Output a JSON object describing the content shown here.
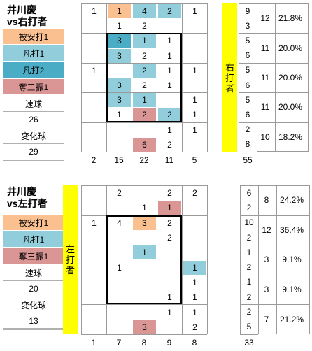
{
  "panels": [
    {
      "title_line1": "井川慶",
      "title_line2": "vs右打者",
      "side_label": [
        "右",
        "打",
        "者"
      ],
      "legend": [
        {
          "label": "被安打1",
          "color": "#fac090"
        },
        {
          "label": "凡打1",
          "color": "#92cddc"
        },
        {
          "label": "凡打2",
          "color": "#4bacc6"
        },
        {
          "label": "奪三振1",
          "color": "#d99694"
        }
      ],
      "pitches": [
        {
          "label": "速球",
          "count": "26"
        },
        {
          "label": "変化球",
          "count": "29"
        }
      ],
      "rows": 10,
      "cells": [
        {
          "r": 0,
          "c": 1,
          "v": "1"
        },
        {
          "r": 0,
          "c": 2,
          "v": "1",
          "bg": "#fac090"
        },
        {
          "r": 0,
          "c": 3,
          "v": "4",
          "bg": "#92cddc"
        },
        {
          "r": 0,
          "c": 4,
          "v": "2",
          "bg": "#92cddc"
        },
        {
          "r": 0,
          "c": 5,
          "v": "1"
        },
        {
          "r": 1,
          "c": 2,
          "v": "1"
        },
        {
          "r": 1,
          "c": 3,
          "v": "2"
        },
        {
          "r": 2,
          "c": 2,
          "v": "3",
          "bg": "#4bacc6"
        },
        {
          "r": 2,
          "c": 3,
          "v": "1",
          "bg": "#92cddc"
        },
        {
          "r": 2,
          "c": 4,
          "v": "1"
        },
        {
          "r": 3,
          "c": 2,
          "v": "3",
          "bg": "#92cddc"
        },
        {
          "r": 3,
          "c": 3,
          "v": "2"
        },
        {
          "r": 3,
          "c": 4,
          "v": "1"
        },
        {
          "r": 4,
          "c": 1,
          "v": "1"
        },
        {
          "r": 4,
          "c": 3,
          "v": "2",
          "bg": "#92cddc"
        },
        {
          "r": 4,
          "c": 4,
          "v": "1"
        },
        {
          "r": 4,
          "c": 5,
          "v": "1"
        },
        {
          "r": 5,
          "c": 2,
          "v": "3",
          "bg": "#92cddc"
        },
        {
          "r": 5,
          "c": 3,
          "v": "2"
        },
        {
          "r": 5,
          "c": 4,
          "v": "1"
        },
        {
          "r": 6,
          "c": 2,
          "v": "3",
          "bg": "#92cddc"
        },
        {
          "r": 6,
          "c": 3,
          "v": "1",
          "bg": "#92cddc"
        },
        {
          "r": 6,
          "c": 5,
          "v": "1"
        },
        {
          "r": 7,
          "c": 2,
          "v": "1"
        },
        {
          "r": 7,
          "c": 3,
          "v": "2",
          "bg": "#d99694"
        },
        {
          "r": 7,
          "c": 4,
          "v": "2",
          "bg": "#92cddc"
        },
        {
          "r": 7,
          "c": 5,
          "v": "1"
        },
        {
          "r": 8,
          "c": 4,
          "v": "1"
        },
        {
          "r": 8,
          "c": 5,
          "v": "1"
        },
        {
          "r": 9,
          "c": 3,
          "v": "6",
          "bg": "#d99694"
        },
        {
          "r": 9,
          "c": 4,
          "v": "2"
        }
      ],
      "col_totals": [
        "2",
        "15",
        "22",
        "11",
        "5"
      ],
      "grand_total": "55",
      "row_counts": [
        "9",
        "3",
        "5",
        "6",
        "5",
        "6",
        "5",
        "6",
        "2",
        "8"
      ],
      "summary": [
        {
          "n": "12",
          "pct": "21.8%"
        },
        {
          "n": "11",
          "pct": "20.0%"
        },
        {
          "n": "11",
          "pct": "20.0%"
        },
        {
          "n": "11",
          "pct": "20.0%"
        },
        {
          "n": "10",
          "pct": "18.2%"
        }
      ]
    },
    {
      "title_line1": "井川慶",
      "title_line2": "vs左打者",
      "side_label": [
        "左",
        "打",
        "者"
      ],
      "legend": [
        {
          "label": "被安打1",
          "color": "#fac090"
        },
        {
          "label": "凡打1",
          "color": "#92cddc"
        },
        {
          "label": "奪三振1",
          "color": "#d99694"
        }
      ],
      "pitches": [
        {
          "label": "速球",
          "count": "20"
        },
        {
          "label": "変化球",
          "count": "13"
        }
      ],
      "rows": 10,
      "cells": [
        {
          "r": 0,
          "c": 2,
          "v": "2"
        },
        {
          "r": 0,
          "c": 4,
          "v": "2"
        },
        {
          "r": 0,
          "c": 5,
          "v": "2"
        },
        {
          "r": 1,
          "c": 3,
          "v": "1"
        },
        {
          "r": 1,
          "c": 4,
          "v": "1",
          "bg": "#d99694"
        },
        {
          "r": 2,
          "c": 1,
          "v": "1"
        },
        {
          "r": 2,
          "c": 2,
          "v": "4"
        },
        {
          "r": 2,
          "c": 3,
          "v": "3",
          "bg": "#fac090"
        },
        {
          "r": 2,
          "c": 4,
          "v": "2"
        },
        {
          "r": 3,
          "c": 4,
          "v": "2"
        },
        {
          "r": 4,
          "c": 3,
          "v": "1",
          "bg": "#92cddc"
        },
        {
          "r": 5,
          "c": 2,
          "v": "1"
        },
        {
          "r": 5,
          "c": 5,
          "v": "1",
          "bg": "#92cddc"
        },
        {
          "r": 6,
          "c": 5,
          "v": "1"
        },
        {
          "r": 7,
          "c": 4,
          "v": "1"
        },
        {
          "r": 7,
          "c": 5,
          "v": "1"
        },
        {
          "r": 8,
          "c": 4,
          "v": "1"
        },
        {
          "r": 8,
          "c": 5,
          "v": "1"
        },
        {
          "r": 9,
          "c": 3,
          "v": "3",
          "bg": "#d99694"
        },
        {
          "r": 9,
          "c": 5,
          "v": "2"
        }
      ],
      "col_totals": [
        "1",
        "7",
        "8",
        "9",
        "8"
      ],
      "grand_total": "33",
      "row_counts": [
        "6",
        "2",
        "10",
        "2",
        "1",
        "2",
        "1",
        "2",
        "2",
        "5"
      ],
      "summary": [
        {
          "n": "8",
          "pct": "24.2%"
        },
        {
          "n": "12",
          "pct": "36.4%"
        },
        {
          "n": "3",
          "pct": "9.1%"
        },
        {
          "n": "3",
          "pct": "9.1%"
        },
        {
          "n": "7",
          "pct": "21.2%"
        }
      ]
    }
  ],
  "chart_data": [
    {
      "type": "table",
      "title": "井川慶 vs右打者",
      "grid": [
        [
          0,
          1,
          1,
          4,
          2,
          1
        ],
        [
          0,
          0,
          1,
          2,
          0,
          0
        ],
        [
          0,
          0,
          3,
          1,
          1,
          0
        ],
        [
          0,
          0,
          3,
          2,
          1,
          0
        ],
        [
          0,
          1,
          0,
          2,
          1,
          1
        ],
        [
          0,
          0,
          3,
          2,
          1,
          0
        ],
        [
          0,
          0,
          3,
          1,
          0,
          1
        ],
        [
          0,
          0,
          1,
          2,
          2,
          1
        ],
        [
          0,
          0,
          0,
          0,
          1,
          1
        ],
        [
          0,
          0,
          0,
          6,
          2,
          0
        ]
      ],
      "column_totals": [
        2,
        15,
        22,
        11,
        5
      ],
      "total": 55,
      "row_counts": [
        9,
        3,
        5,
        6,
        5,
        6,
        5,
        6,
        2,
        8
      ],
      "group_totals": [
        12,
        11,
        11,
        11,
        10
      ],
      "group_pcts": [
        "21.8%",
        "20.0%",
        "20.0%",
        "20.0%",
        "18.2%"
      ]
    },
    {
      "type": "table",
      "title": "井川慶 vs左打者",
      "grid": [
        [
          0,
          0,
          2,
          0,
          2,
          2
        ],
        [
          0,
          0,
          0,
          1,
          1,
          0
        ],
        [
          0,
          1,
          4,
          3,
          2,
          0
        ],
        [
          0,
          0,
          0,
          0,
          2,
          0
        ],
        [
          0,
          0,
          0,
          1,
          0,
          0
        ],
        [
          0,
          0,
          1,
          0,
          0,
          1
        ],
        [
          0,
          0,
          0,
          0,
          0,
          1
        ],
        [
          0,
          0,
          0,
          0,
          1,
          1
        ],
        [
          0,
          0,
          0,
          0,
          1,
          1
        ],
        [
          0,
          0,
          0,
          3,
          0,
          2
        ]
      ],
      "column_totals": [
        1,
        7,
        8,
        9,
        8
      ],
      "total": 33,
      "row_counts": [
        6,
        2,
        10,
        2,
        1,
        2,
        1,
        2,
        2,
        5
      ],
      "group_totals": [
        8,
        12,
        3,
        3,
        7
      ],
      "group_pcts": [
        "24.2%",
        "36.4%",
        "9.1%",
        "9.1%",
        "21.2%"
      ]
    }
  ]
}
